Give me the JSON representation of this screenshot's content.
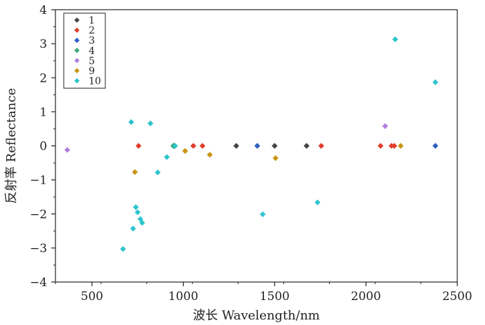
{
  "chart_data": {
    "type": "scatter",
    "title": "",
    "xlabel": "波长 Wavelength/nm",
    "ylabel": "反射率 Reflectance",
    "xlim": [
      300,
      2500
    ],
    "ylim": [
      -4,
      4
    ],
    "xticks": [
      500,
      1000,
      1500,
      2000,
      2500
    ],
    "yticks": [
      -4,
      -3,
      -2,
      -1,
      0,
      1,
      2,
      3,
      4
    ],
    "grid": false,
    "legend_position": "top-left",
    "series": [
      {
        "name": "1",
        "color": "#444444",
        "points": [
          [
            950,
            0
          ],
          [
            1290,
            0
          ],
          [
            1500,
            0
          ],
          [
            1675,
            0
          ]
        ]
      },
      {
        "name": "2",
        "color": "#e03c2c",
        "points": [
          [
            755,
            0
          ],
          [
            1055,
            0
          ],
          [
            1105,
            0
          ],
          [
            1755,
            0
          ],
          [
            2080,
            0
          ],
          [
            2140,
            0
          ],
          [
            2155,
            0
          ]
        ]
      },
      {
        "name": "3",
        "color": "#2a5fbf",
        "points": [
          [
            1405,
            0
          ],
          [
            2380,
            0
          ]
        ]
      },
      {
        "name": "4",
        "color": "#3aaa78",
        "points": [
          [
            945,
            0
          ]
        ]
      },
      {
        "name": "5",
        "color": "#b17fe0",
        "points": [
          [
            365,
            -0.12
          ],
          [
            2105,
            0.58
          ]
        ]
      },
      {
        "name": "9",
        "color": "#c89512",
        "points": [
          [
            735,
            -0.77
          ],
          [
            1010,
            -0.15
          ],
          [
            1145,
            -0.26
          ],
          [
            1505,
            -0.36
          ],
          [
            2190,
            0
          ]
        ]
      },
      {
        "name": "10",
        "color": "#2ec4cc",
        "points": [
          [
            670,
            -3.03
          ],
          [
            715,
            0.7
          ],
          [
            725,
            -2.43
          ],
          [
            740,
            -1.8
          ],
          [
            750,
            -1.95
          ],
          [
            765,
            -2.15
          ],
          [
            775,
            -2.26
          ],
          [
            820,
            0.66
          ],
          [
            860,
            -0.78
          ],
          [
            910,
            -0.33
          ],
          [
            955,
            0
          ],
          [
            1435,
            -2.01
          ],
          [
            1735,
            -1.66
          ],
          [
            2160,
            3.13
          ],
          [
            2380,
            1.87
          ]
        ]
      }
    ]
  }
}
